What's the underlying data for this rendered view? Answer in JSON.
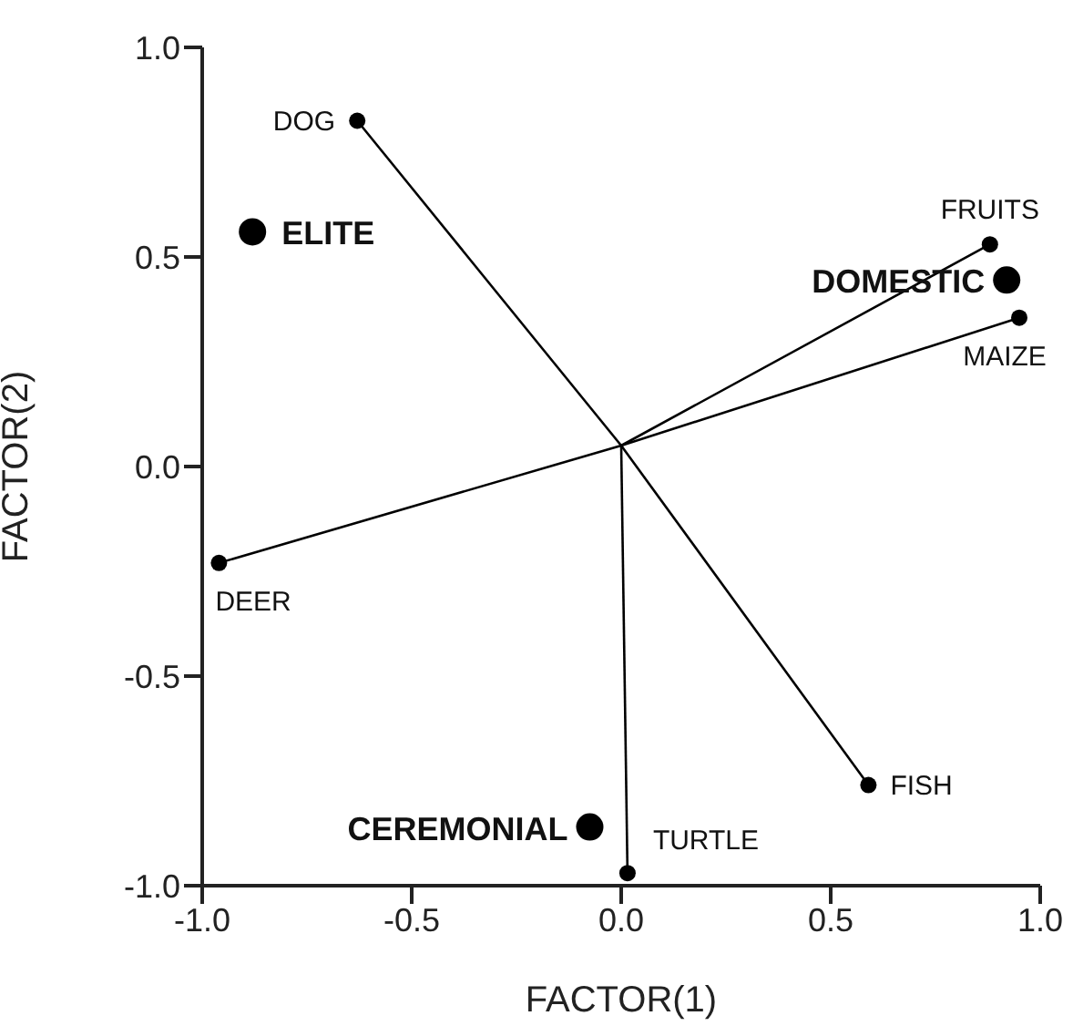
{
  "chart_data": {
    "type": "scatter",
    "xlabel": "FACTOR(1)",
    "ylabel": "FACTOR(2)",
    "xlim": [
      -1.0,
      1.0
    ],
    "xticks": [
      {
        "value": -1.0,
        "label": "-1.0"
      },
      {
        "value": -0.5,
        "label": "-0.5"
      },
      {
        "value": 0,
        "label": "0.0"
      },
      {
        "value": 0.5,
        "label": "0.5"
      },
      {
        "value": 1.0,
        "label": "1.0"
      }
    ],
    "ylim": [
      -1.0,
      1.0
    ],
    "yticks": [
      {
        "value": -1.0,
        "label": "-1.0"
      },
      {
        "value": -0.5,
        "label": "-0.5"
      },
      {
        "value": 0,
        "label": "0.0"
      },
      {
        "value": 0.5,
        "label": "0.5"
      },
      {
        "value": 1.0,
        "label": "1.0"
      }
    ],
    "grid": false,
    "series": [
      {
        "type": "line",
        "marker": "none",
        "color": "#000000",
        "x": [
          -0.63,
          0.0,
          0.59
        ],
        "values": [
          0.825,
          0.05,
          -0.76
        ]
      },
      {
        "type": "line",
        "marker": "none",
        "color": "#000000",
        "x": [
          -0.96,
          0.0,
          0.88
        ],
        "values": [
          -0.23,
          0.05,
          0.53
        ]
      },
      {
        "type": "line",
        "marker": "none",
        "color": "#000000",
        "x": [
          0.0,
          0.95
        ],
        "values": [
          0.05,
          0.355
        ]
      },
      {
        "type": "line",
        "marker": "none",
        "color": "#000000",
        "x": [
          0.0,
          0.015
        ],
        "values": [
          0.05,
          -0.97
        ]
      },
      {
        "marker": "circle",
        "color": "#000000",
        "x": [
          -0.63,
          0.88,
          0.95,
          -0.96,
          0.59,
          0.015
        ],
        "values": [
          0.825,
          0.53,
          0.355,
          -0.23,
          -0.76,
          -0.97
        ]
      },
      {
        "marker": "circle",
        "color": "#000000",
        "x": [
          -0.88,
          0.92,
          -0.075
        ],
        "values": [
          0.56,
          0.445,
          -0.86
        ]
      }
    ],
    "annotations": [
      {
        "text": "DOG",
        "x": -0.63,
        "y": 0.825
      },
      {
        "text": "FRUITS",
        "x": 0.88,
        "y": 0.53
      },
      {
        "text": "MAIZE",
        "x": 0.95,
        "y": 0.355
      },
      {
        "text": "DEER",
        "x": -0.96,
        "y": -0.23
      },
      {
        "text": "FISH",
        "x": 0.59,
        "y": -0.76
      },
      {
        "text": "TURTLE",
        "x": 0.015,
        "y": -0.97
      },
      {
        "text": "ELITE",
        "x": -0.88,
        "y": 0.56
      },
      {
        "text": "DOMESTIC",
        "x": 0.92,
        "y": 0.445
      },
      {
        "text": "CEREMONIAL",
        "x": -0.075,
        "y": -0.86
      }
    ]
  }
}
